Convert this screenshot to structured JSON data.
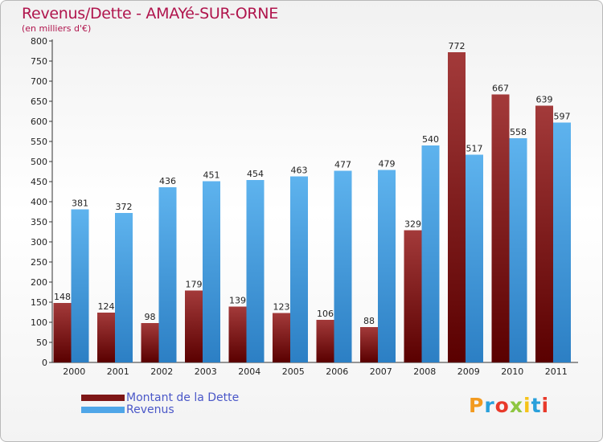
{
  "title": "Revenus/Dette - AMAYé-SUR-ORNE",
  "subtitle": "(en milliers d'€)",
  "logo": {
    "text": "Proxiti",
    "letter_colors": [
      "#f29a1f",
      "#29a0db",
      "#e8392a",
      "#8ec641",
      "#f6c31a",
      "#29a0db",
      "#e8392a"
    ]
  },
  "colors": {
    "debt": "#7e1616",
    "revenue": "#4fa6e8"
  },
  "chart_data": {
    "type": "bar",
    "title": "Revenus/Dette - AMAYé-SUR-ORNE",
    "ylabel": "(en milliers d'€)",
    "xlabel": "",
    "categories": [
      "2000",
      "2001",
      "2002",
      "2003",
      "2004",
      "2005",
      "2006",
      "2007",
      "2008",
      "2009",
      "2010",
      "2011"
    ],
    "series": [
      {
        "name": "Montant de la Dette",
        "values": [
          148,
          124,
          98,
          179,
          139,
          123,
          106,
          88,
          329,
          772,
          667,
          639
        ]
      },
      {
        "name": "Revenus",
        "values": [
          381,
          372,
          436,
          451,
          454,
          463,
          477,
          479,
          540,
          517,
          558,
          597
        ]
      }
    ],
    "ylim": [
      0,
      800
    ],
    "ytick_step": 50,
    "grid": false,
    "legend_position": "bottom-left"
  }
}
